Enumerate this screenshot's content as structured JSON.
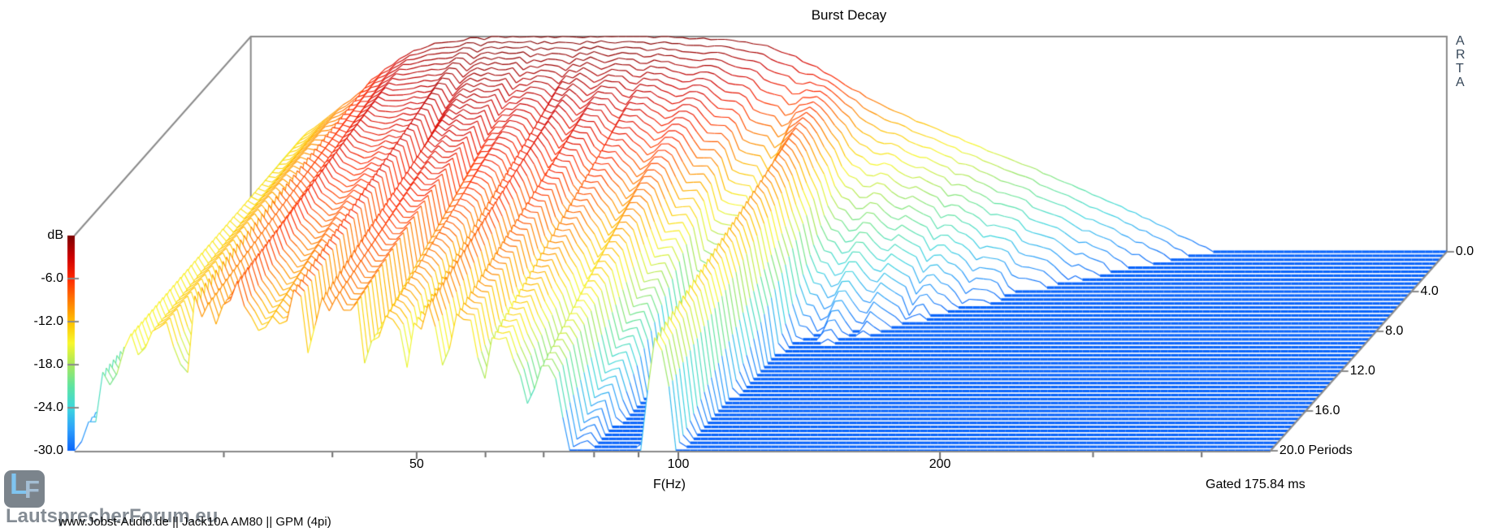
{
  "title": "Burst Decay",
  "app_badge": "ARTA",
  "gated_note": "Gated 175.84 ms",
  "footer_note": "www.Jobst-Audio.de  ||  Jack10A AM80  ||  GPM (4pi)",
  "watermark": {
    "text": "LautsprecherForum.eu",
    "logo_letter_1": "L",
    "logo_letter_2": "F"
  },
  "axes": {
    "x": {
      "label": "F(Hz)",
      "scale": "log",
      "tick_labels": [
        50,
        100,
        200
      ],
      "minor_ticks": [
        30,
        40,
        60,
        70,
        80,
        90,
        300,
        400
      ],
      "range_hz": [
        20.2,
        480
      ]
    },
    "y": {
      "label_unit": "Periods",
      "ticks": [
        "0.0",
        "4.0",
        "8.0",
        "12.0",
        "16.0",
        "20.0"
      ],
      "tick_values": [
        0,
        4,
        8,
        12,
        16,
        20
      ],
      "range": [
        0,
        20
      ]
    },
    "z": {
      "label": "dB",
      "ticks": [
        "-6.0",
        "-12.0",
        "-18.0",
        "-24.0",
        "-30.0"
      ],
      "tick_values": [
        -6,
        -12,
        -18,
        -24,
        -30
      ],
      "range_db": [
        -30,
        0
      ]
    }
  },
  "colors": {
    "box_line": "#8a8a8a",
    "tick_line": "#6e6e6e",
    "floor_blue": "#0A64FA",
    "text": "#000000"
  },
  "chart_data": {
    "type": "waterfall3d-burst-decay",
    "title": "Burst Decay",
    "xlabel": "F(Hz)",
    "ylabel": "Periods",
    "zlabel": "dB",
    "x_range_hz": [
      20.2,
      480
    ],
    "period_range": [
      0,
      20
    ],
    "z_range_db": [
      -30,
      0
    ],
    "num_slices": 51,
    "gate_ms": 175.84,
    "envelope_db": [
      [
        20,
        -28
      ],
      [
        21,
        -21
      ],
      [
        22,
        -17
      ],
      [
        23,
        -14.5
      ],
      [
        24,
        -12.5
      ],
      [
        25,
        -11
      ],
      [
        26,
        -9.3
      ],
      [
        27,
        -7.6
      ],
      [
        28,
        -5.9
      ],
      [
        29,
        -4.3
      ],
      [
        30,
        -3
      ],
      [
        32,
        -1.4
      ],
      [
        34,
        -0.6
      ],
      [
        36,
        -0.25
      ],
      [
        40,
        -0.1
      ],
      [
        45,
        0
      ],
      [
        55,
        0
      ],
      [
        62,
        -0.1
      ],
      [
        68,
        -0.3
      ],
      [
        74,
        -0.7
      ],
      [
        80,
        -1.5
      ],
      [
        85,
        -2.7
      ],
      [
        90,
        -4.2
      ],
      [
        95,
        -5.8
      ],
      [
        100,
        -7.5
      ],
      [
        108,
        -9.6
      ],
      [
        116,
        -11.4
      ],
      [
        126,
        -13.2
      ],
      [
        136,
        -14.9
      ],
      [
        148,
        -16.7
      ],
      [
        160,
        -18.3
      ],
      [
        175,
        -20.3
      ],
      [
        190,
        -22.2
      ],
      [
        205,
        -24
      ],
      [
        220,
        -25.8
      ],
      [
        235,
        -27.5
      ],
      [
        250,
        -29
      ],
      [
        262,
        -30
      ],
      [
        300,
        -30
      ],
      [
        480,
        -30
      ]
    ],
    "decay_db_per_period": [
      [
        20,
        0.12
      ],
      [
        24,
        0.18
      ],
      [
        28,
        0.26
      ],
      [
        32,
        0.34
      ],
      [
        36,
        0.43
      ],
      [
        40,
        0.5
      ],
      [
        45,
        0.55
      ],
      [
        50,
        0.58
      ],
      [
        56,
        0.6
      ],
      [
        62,
        0.68
      ],
      [
        68,
        0.82
      ],
      [
        74,
        1.1
      ],
      [
        79,
        1.6
      ],
      [
        84,
        2.1
      ],
      [
        88,
        2.3
      ],
      [
        91,
        1.2
      ],
      [
        93,
        0.5
      ],
      [
        95,
        0.42
      ],
      [
        98,
        0.7
      ],
      [
        101,
        1.5
      ],
      [
        105,
        2.3
      ],
      [
        112,
        2.1
      ],
      [
        120,
        1.95
      ],
      [
        130,
        2.0
      ],
      [
        142,
        2.1
      ],
      [
        155,
        2.2
      ],
      [
        170,
        2.3
      ],
      [
        188,
        2.45
      ],
      [
        205,
        2.6
      ],
      [
        230,
        2.85
      ],
      [
        260,
        3.1
      ],
      [
        300,
        3.4
      ],
      [
        360,
        3.75
      ],
      [
        480,
        4.2
      ]
    ],
    "resonance_notches": [
      [
        27,
        5
      ],
      [
        33,
        7
      ],
      [
        38,
        6
      ],
      [
        44,
        8
      ],
      [
        49,
        5
      ],
      [
        54,
        8
      ],
      [
        60,
        9
      ],
      [
        67,
        8
      ],
      [
        75,
        7
      ],
      [
        81,
        6
      ],
      [
        110,
        6
      ],
      [
        121,
        8
      ],
      [
        134,
        7
      ],
      [
        150,
        8
      ],
      [
        167,
        6
      ],
      [
        186,
        7
      ],
      [
        212,
        6
      ]
    ],
    "colormap": [
      [
        0.0,
        [
          10,
          100,
          250
        ]
      ],
      [
        0.1,
        [
          45,
          160,
          252
        ]
      ],
      [
        0.2,
        [
          60,
          215,
          222
        ]
      ],
      [
        0.3,
        [
          95,
          228,
          160
        ]
      ],
      [
        0.4,
        [
          168,
          232,
          92
        ]
      ],
      [
        0.5,
        [
          248,
          248,
          45
        ]
      ],
      [
        0.6,
        [
          255,
          192,
          0
        ]
      ],
      [
        0.7,
        [
          255,
          120,
          0
        ]
      ],
      [
        0.8,
        [
          255,
          40,
          0
        ]
      ],
      [
        0.9,
        [
          205,
          0,
          0
        ]
      ],
      [
        1.0,
        [
          125,
          0,
          0
        ]
      ]
    ]
  }
}
